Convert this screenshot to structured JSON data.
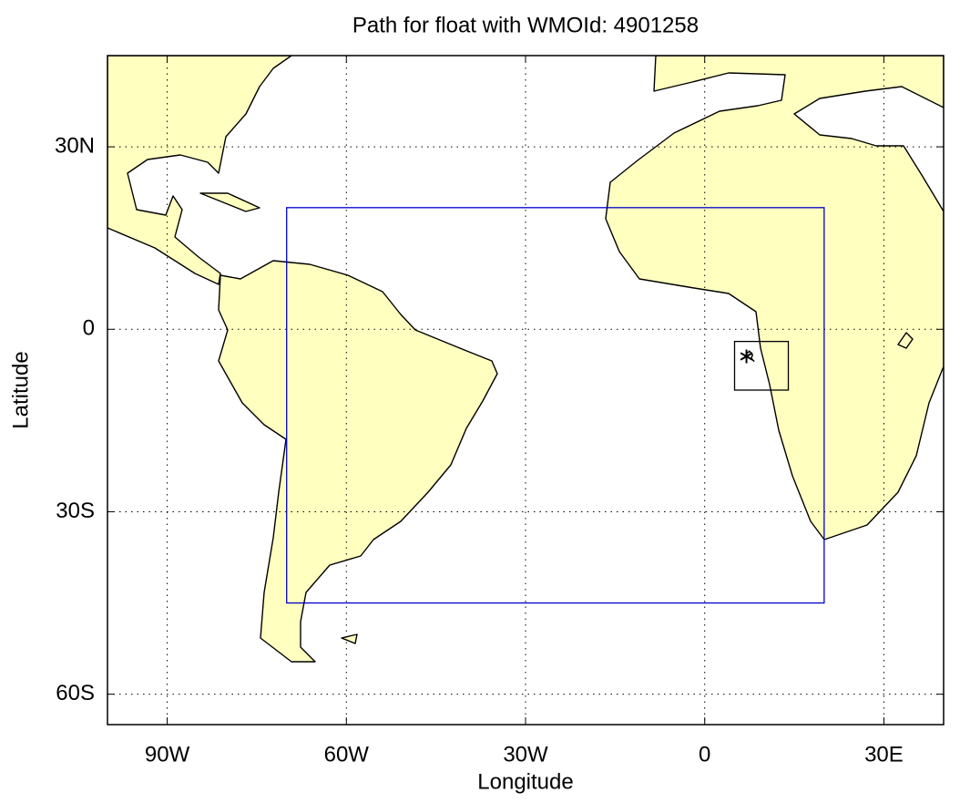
{
  "chart_data": {
    "type": "map",
    "title": "Path for float with WMOId: 4901258",
    "x_label": "Longitude",
    "y_label": "Latitude",
    "xlim": [
      -100,
      40
    ],
    "ylim": [
      -65,
      45
    ],
    "xticks": [
      {
        "value": -90,
        "label": "90W"
      },
      {
        "value": -60,
        "label": "60W"
      },
      {
        "value": -30,
        "label": "30W"
      },
      0,
      {
        "value": 30,
        "label": "30E"
      }
    ],
    "yticks": [
      {
        "value": 30,
        "label": "30N"
      },
      0,
      {
        "value": -30,
        "label": "30S"
      },
      {
        "value": -60,
        "label": "60S"
      }
    ],
    "grid": true,
    "boxes": [
      {
        "lon": [
          -70,
          20
        ],
        "lat": [
          -45,
          20
        ],
        "color": "#0000cc"
      },
      {
        "lon": [
          5,
          14
        ],
        "lat": [
          -10,
          -2
        ],
        "color": "#000000"
      }
    ],
    "float_path": {
      "lon": [
        7,
        7.5,
        8,
        7.8,
        8.3
      ],
      "lat": [
        -4,
        -3.6,
        -4.2,
        -4.8,
        -5.3
      ],
      "color": "#000000"
    }
  }
}
